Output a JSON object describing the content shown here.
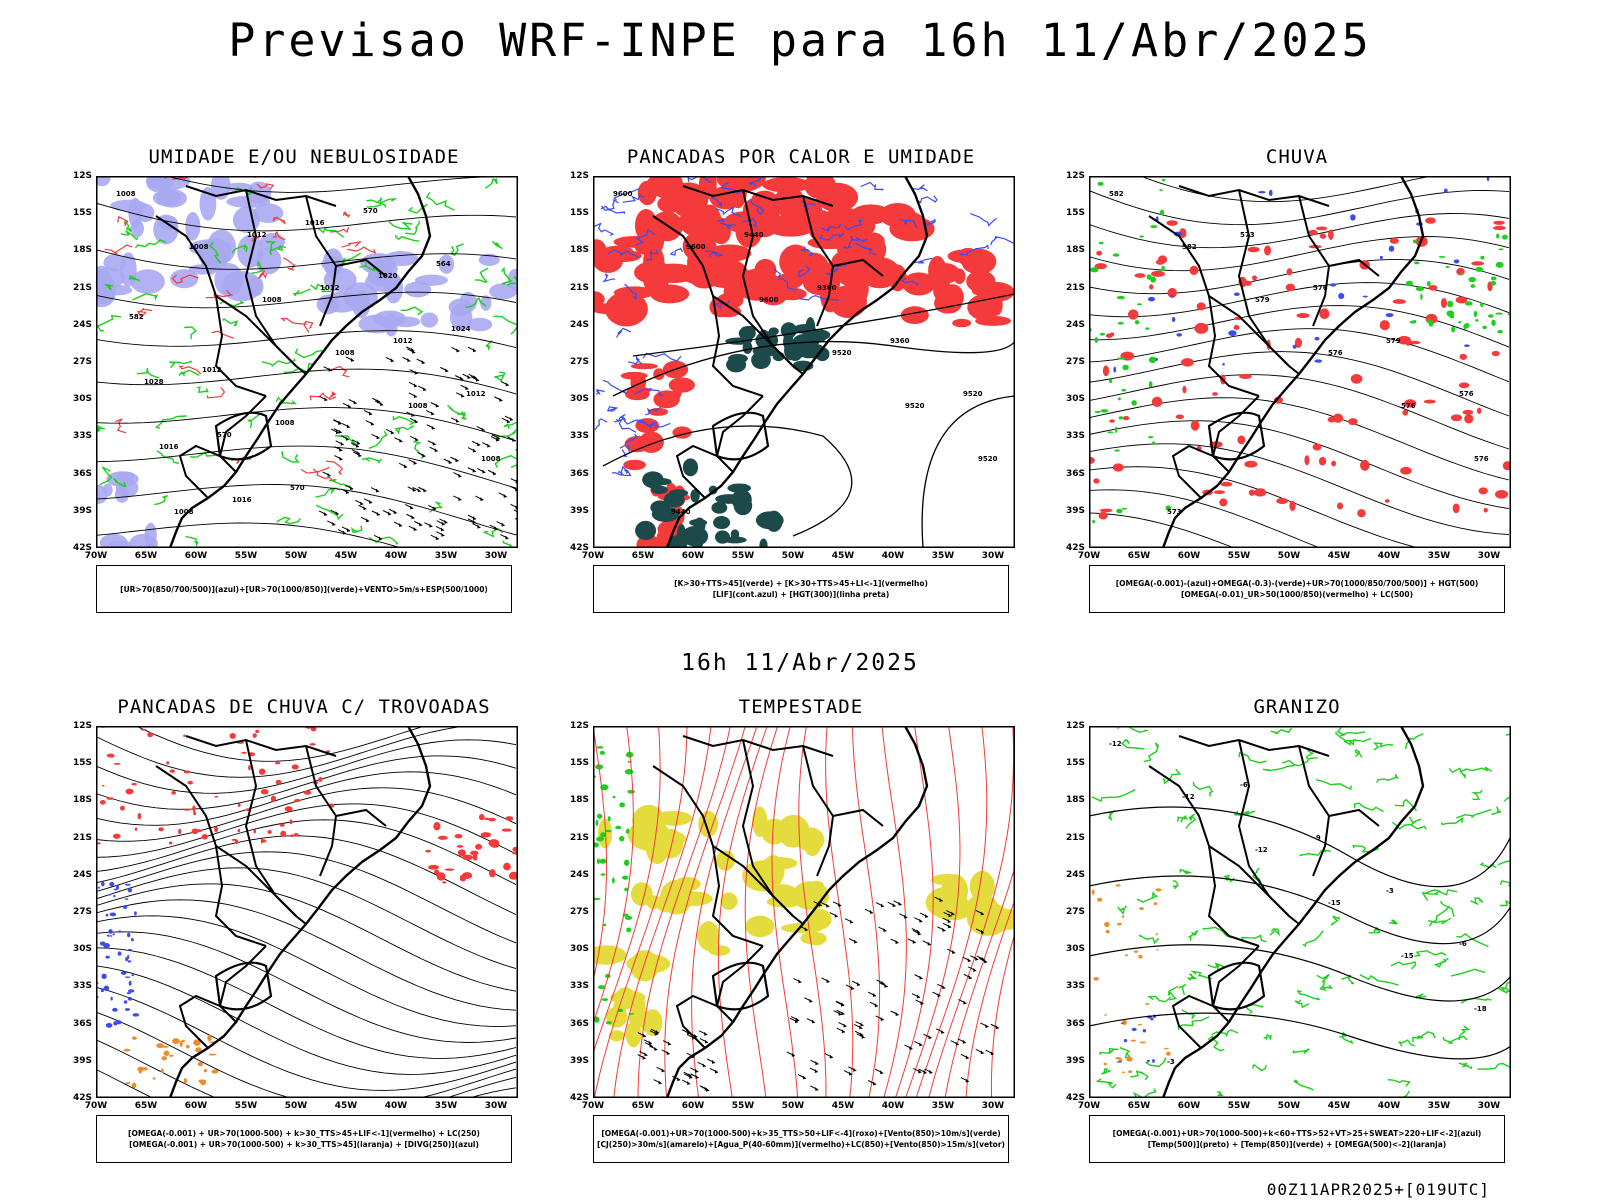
{
  "title": "Previsao WRF-INPE  para 16h 11/Abr/2025",
  "mid_time": "16h 11/Abr/2025",
  "footer": "00Z11APR2025+[019UTC]",
  "axes": {
    "lat": [
      "12S",
      "15S",
      "18S",
      "21S",
      "24S",
      "27S",
      "30S",
      "33S",
      "36S",
      "39S",
      "42S"
    ],
    "lon": [
      "70W",
      "65W",
      "60W",
      "55W",
      "50W",
      "45W",
      "40W",
      "35W",
      "30W"
    ]
  },
  "colors": {
    "blue": "#3a4bf0",
    "lavender": "#a9a9f2",
    "green": "#1ccf1c",
    "red": "#f43a3a",
    "darkteal": "#1c4a4a",
    "orange": "#f08a2a",
    "yellow": "#e4dc3c"
  },
  "panels": [
    {
      "title": "UMIDADE E/OU NEBULOSIDADE",
      "legend": [
        "[UR>70(850/700/500)](azul)+[UR>70(1000/850)](verde)+VENTO>5m/s+ESP(500/1000)"
      ],
      "labels": [
        "1008",
        "1008",
        "1008",
        "1008",
        "1008",
        "1008",
        "1008",
        "1012",
        "1012",
        "1012",
        "1012",
        "1016",
        "1016",
        "1016",
        "1020",
        "1024",
        "1028",
        "570",
        "570",
        "570",
        "564",
        "582",
        "1012",
        "1008"
      ]
    },
    {
      "title": "PANCADAS POR CALOR E UMIDADE",
      "legend": [
        "[K>30+TTS>45](verde) + [K>30+TTS>45+LI<-1](vermelho)",
        "[LIF](cont.azul) + [HGT(300)](linha preta)"
      ],
      "labels": [
        "9600",
        "9600",
        "9600",
        "9520",
        "9520",
        "9520",
        "9440",
        "9440",
        "9360",
        "9360",
        "9520"
      ]
    },
    {
      "title": "CHUVA",
      "legend": [
        "[OMEGA(-0.001)-(azul)+OMEGA(-0.3)-(verde)+UR>70(1000/850/700/500)] + HGT(500)",
        "[OMEGA(-0.01)_UR>50(1000/850)(vermelho) + LC(500)"
      ],
      "labels": [
        "582",
        "582",
        "579",
        "576",
        "576",
        "576",
        "573",
        "573",
        "576",
        "579",
        "576"
      ]
    },
    {
      "title": "PANCADAS DE CHUVA C/ TROVOADAS",
      "legend": [
        "[OMEGA(-0.001) + UR>70(1000-500) + k>30_TTS>45+LIF<-1](vermelho) + LC(250)",
        "[OMEGA(-0.001) + UR>70(1000-500) + k>30_TTS>45](laranja) + [DIVG(250)](azul)"
      ],
      "labels": []
    },
    {
      "title": "TEMPESTADE",
      "legend": [
        "[OMEGA(-0.001)+UR>70(1000-500)+k>35_TTS>50+LIF<-4](roxo)+[Vento(850)>10m/s](verde)",
        "[CJ(250)>30m/s](amarelo)+[Agua_P(40-60mm)](vermelho)+LC(850)+[Vento(850)>15m/s](vetor)"
      ],
      "labels": []
    },
    {
      "title": "GRANIZO",
      "legend": [
        "[OMEGA(-0.001)+UR>70(1000-500)+k<60+TTS>52+VT>25+SWEAT>220+LIF<-2](azul)",
        "[Temp(500)](preto) + [Temp(850)](verde) + [OMEGA(500)<-2](laranja)"
      ],
      "labels": [
        "-12",
        "-12",
        "-12",
        "-15",
        "-15",
        "-18",
        "-3",
        "-6",
        "-9",
        "-3",
        "-6"
      ]
    }
  ]
}
